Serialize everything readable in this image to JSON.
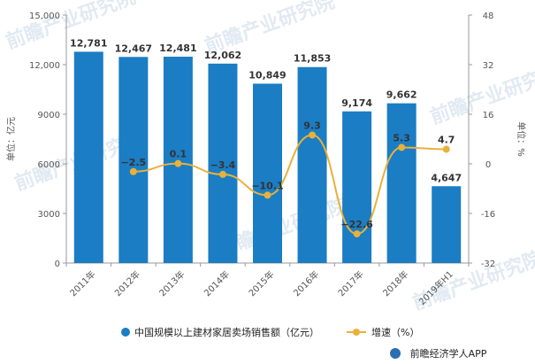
{
  "chart_data": {
    "type": "bar+line",
    "categories": [
      "2011年",
      "2012年",
      "2013年",
      "2014年",
      "2015年",
      "2016年",
      "2017年",
      "2018年",
      "2019年H1"
    ],
    "series": [
      {
        "name": "中国规模以上建材家居卖场销售额（亿元）",
        "type": "bar",
        "axis": "left",
        "values": [
          12781,
          12467,
          12481,
          12062,
          10849,
          11853,
          9174,
          9662,
          4647
        ],
        "labels": [
          "12,781",
          "12,467",
          "12,481",
          "12,062",
          "10,849",
          "11,853",
          "9,174",
          "9,662",
          "4,647"
        ]
      },
      {
        "name": "增速（%）",
        "type": "line",
        "axis": "right",
        "values": [
          null,
          -2.5,
          0.1,
          -3.4,
          -10.1,
          9.3,
          -22.6,
          5.3,
          4.7
        ],
        "labels": [
          "",
          "−2.5",
          "0.1",
          "−3.4",
          "−10.1",
          "9.3",
          "−22.6",
          "5.3",
          "4.7"
        ]
      }
    ],
    "y_left": {
      "label": "单位：亿元",
      "lim": [
        0,
        15000
      ],
      "ticks": [
        0,
        3000,
        6000,
        9000,
        12000,
        15000
      ],
      "tick_labels": [
        "0",
        "3000",
        "6000",
        "9000",
        "12,000",
        "15,000"
      ]
    },
    "y_right": {
      "label": "单位：%",
      "lim": [
        -32,
        48
      ],
      "ticks": [
        -32,
        -16,
        0,
        16,
        32,
        48
      ],
      "tick_labels": [
        "-32",
        "-16",
        "0",
        "16",
        "32",
        "48"
      ]
    },
    "legend_position": "bottom",
    "colors": {
      "bar": "#1b7dc4",
      "line": "#e8b13a",
      "axis": "#999999"
    }
  },
  "source": "前瞻经济学人APP",
  "watermark": "前瞻产业研究院"
}
